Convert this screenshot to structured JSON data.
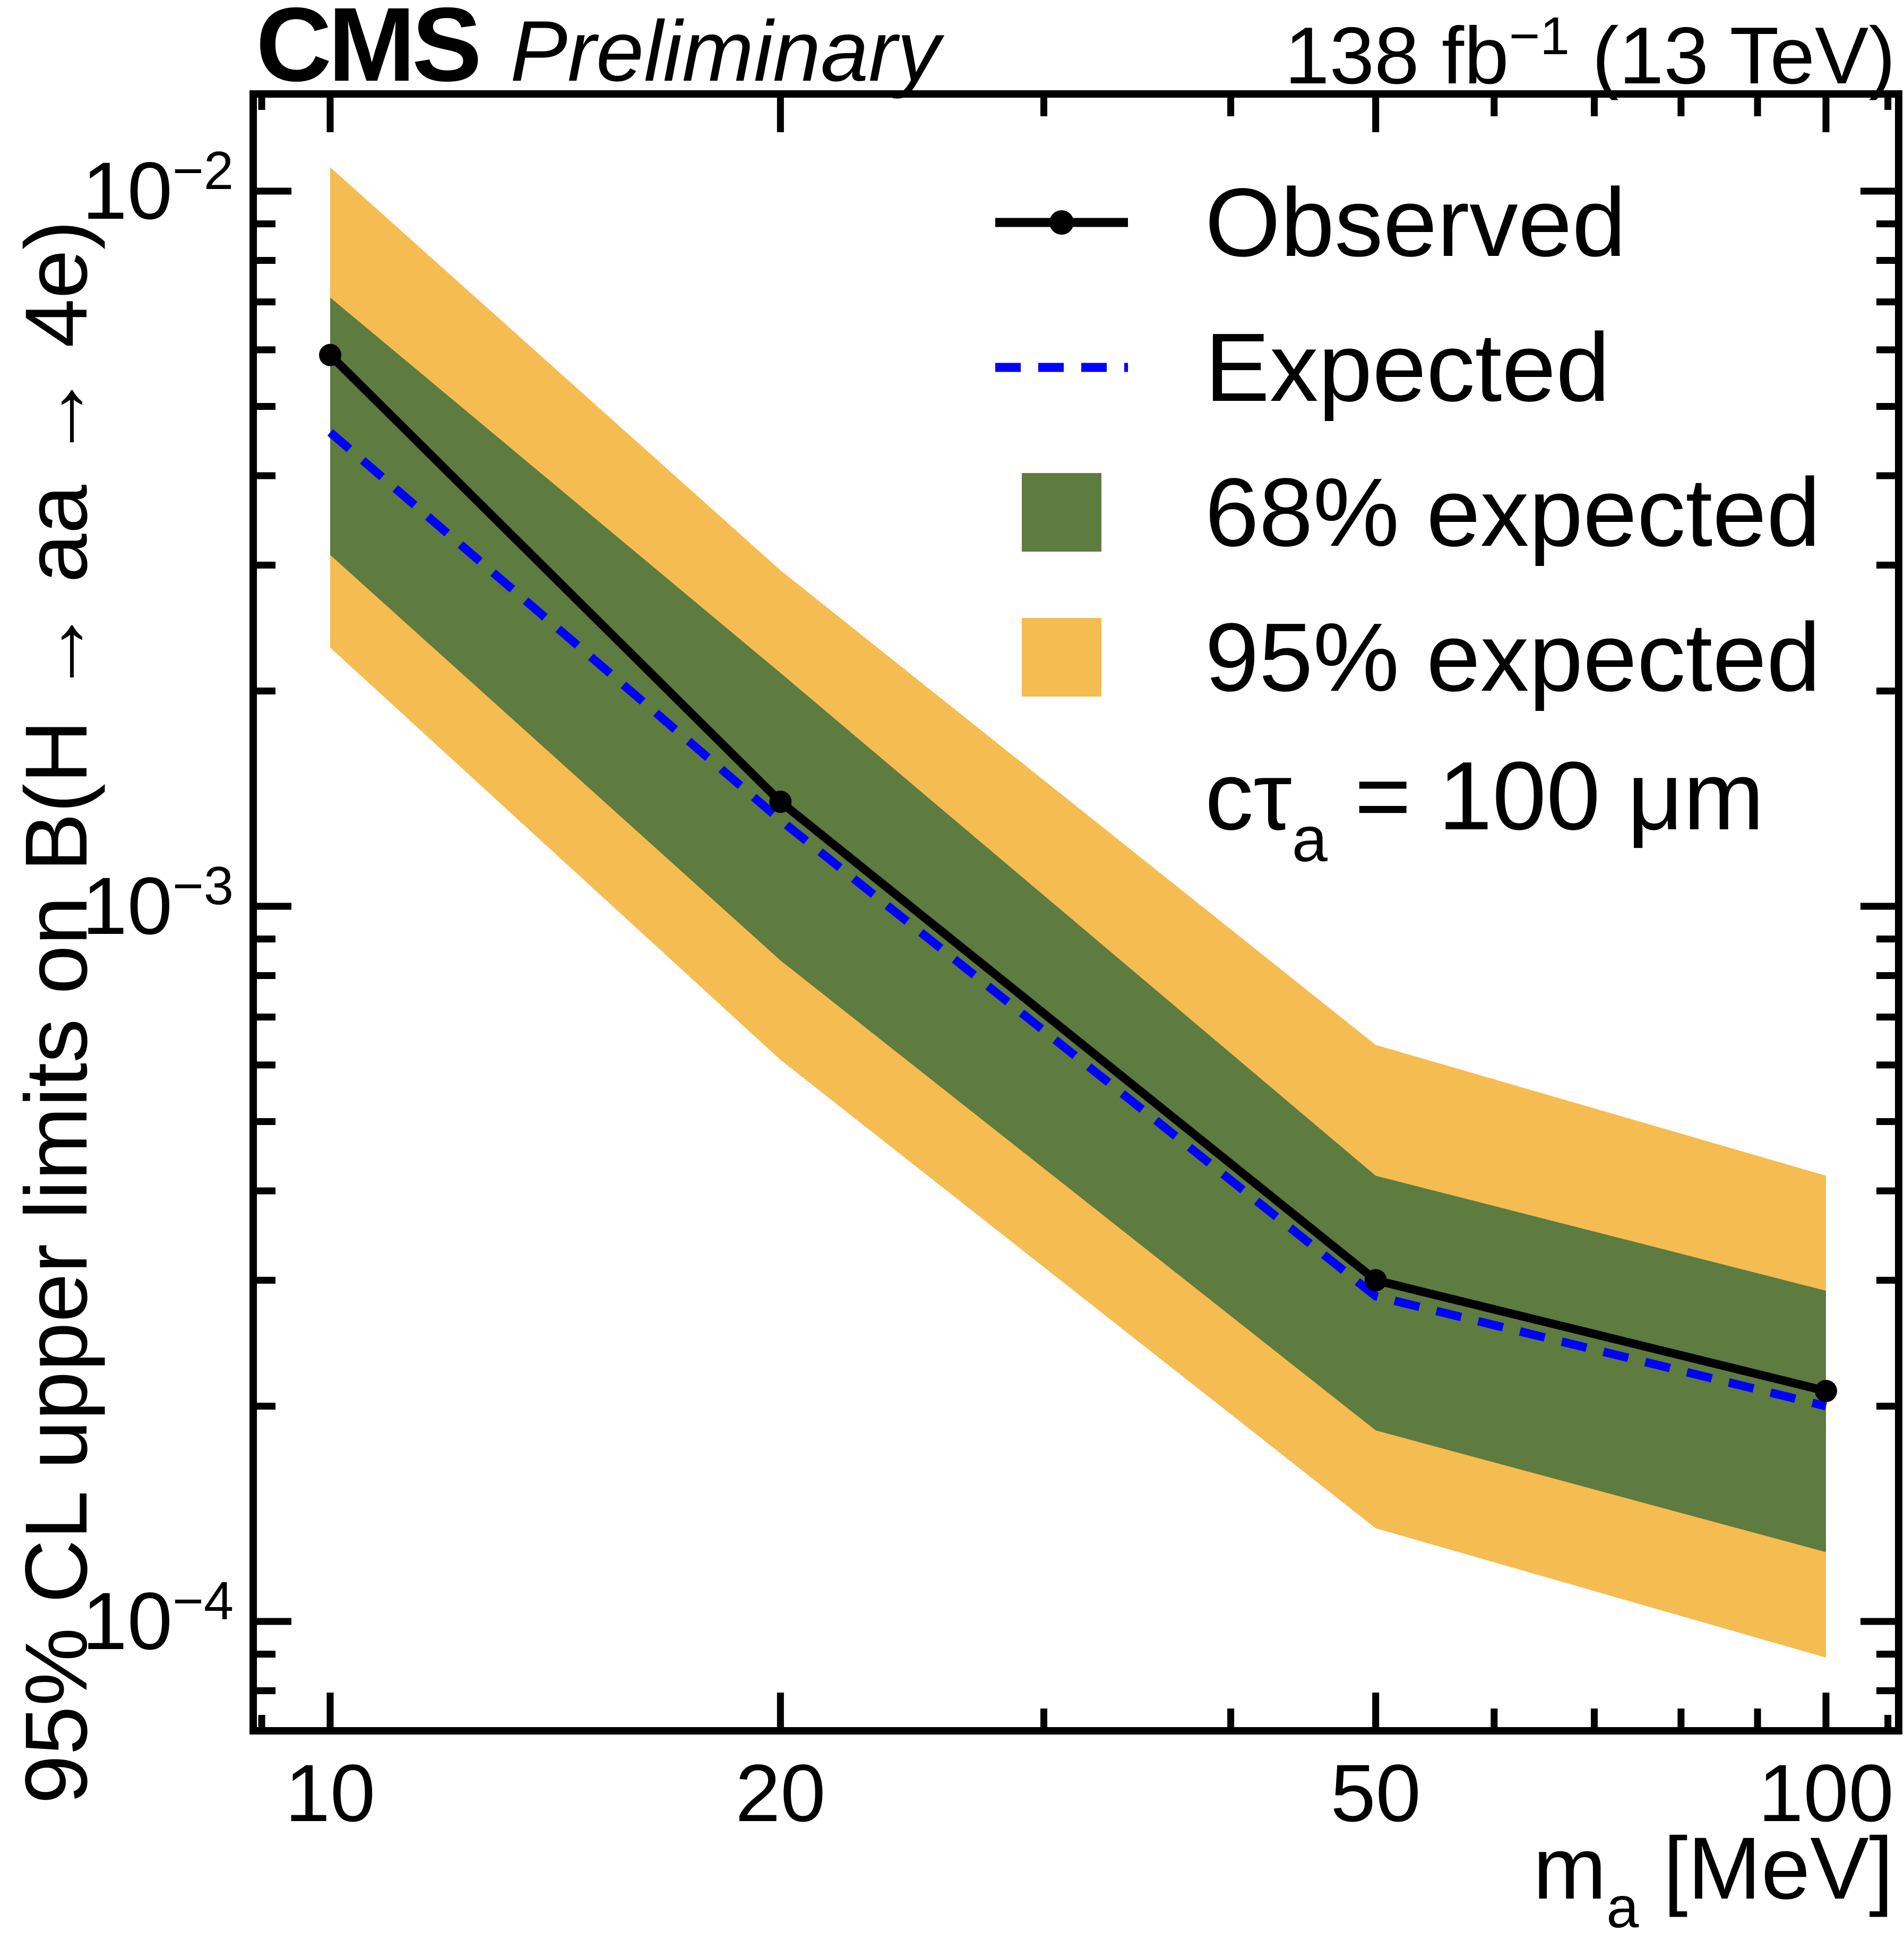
{
  "header": {
    "experiment": "CMS",
    "status": "Preliminary",
    "lumi_prefix": "138 fb",
    "lumi_sup": "−1",
    "lumi_suffix": " (13 TeV)"
  },
  "axes": {
    "y_title": "95% CL upper limits on B(H → aa → 4e)",
    "x_title_main": "m",
    "x_title_sub": "a",
    "x_title_suffix": " [MeV]"
  },
  "legend": {
    "items": [
      {
        "label": "Observed",
        "style": "line-marker"
      },
      {
        "label": "Expected",
        "style": "dashed-line"
      },
      {
        "label": "68% expected",
        "style": "box-green"
      },
      {
        "label": "95% expected",
        "style": "box-yellow"
      }
    ],
    "caption_prefix": "cτ",
    "caption_sub": "a",
    "caption_suffix": " = 100 μm"
  },
  "chart_data": {
    "type": "line",
    "title": "CMS Preliminary 95% CL upper limit Brazil-band plot",
    "xlabel": "m_a [MeV]",
    "ylabel": "95% CL upper limits on B(H → aa → 4e)",
    "xscale": "log",
    "yscale": "log",
    "xlim": [
      8.9,
      112
    ],
    "ylim": [
      7e-05,
      0.0137
    ],
    "grid": false,
    "legend_position": "top-right",
    "annotation": "cτ_a = 100 μm",
    "x": [
      10,
      20,
      50,
      100
    ],
    "series": [
      {
        "name": "Observed",
        "values": [
          0.0059,
          0.0014,
          0.0003,
          0.00021
        ]
      },
      {
        "name": "Expected",
        "values": [
          0.0046,
          0.00132,
          0.000285,
          0.0002
        ]
      },
      {
        "name": "68% expected",
        "up": [
          0.0071,
          0.00212,
          0.00042,
          0.00029
        ],
        "down": [
          0.0031,
          0.00084,
          0.000185,
          0.000125
        ]
      },
      {
        "name": "95% expected",
        "up": [
          0.0108,
          0.00295,
          0.00064,
          0.00042
        ],
        "down": [
          0.0023,
          0.00061,
          0.000135,
          8.9e-05
        ]
      }
    ],
    "xticks": {
      "major": [
        10,
        20,
        50,
        100
      ],
      "minor": [
        30,
        40,
        60,
        70,
        80,
        90
      ],
      "edge": [
        9,
        110
      ]
    },
    "yticks": {
      "major_exponents": [
        -2,
        -3,
        -4
      ],
      "minor": [
        8e-05,
        9e-05,
        0.0002,
        0.0003,
        0.0004,
        0.0005,
        0.0006,
        0.0007,
        0.0008,
        0.0009,
        0.002,
        0.003,
        0.004,
        0.005,
        0.006,
        0.007,
        0.008,
        0.009
      ]
    },
    "colors": {
      "observed": "#000000",
      "expected": "#0000ff",
      "band68": "#5e7b40",
      "band95": "#f5bc51",
      "frame": "#000000"
    }
  }
}
